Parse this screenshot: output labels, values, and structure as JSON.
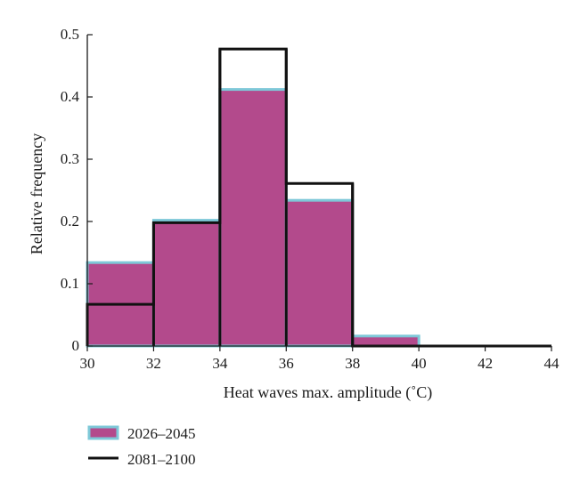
{
  "chart_data": {
    "type": "bar",
    "title": "",
    "xlabel": "Heat waves max. amplitude (˚C)",
    "ylabel": "Relative frequency",
    "xlim": [
      30,
      44
    ],
    "ylim": [
      0,
      0.5
    ],
    "x_ticks": [
      "30",
      "32",
      "34",
      "36",
      "38",
      "40",
      "42",
      "44"
    ],
    "y_ticks": [
      "0",
      "0.1",
      "0.2",
      "0.3",
      "0.4",
      "0.5"
    ],
    "bin_edges": [
      30,
      32,
      34,
      36,
      38,
      40,
      42,
      44
    ],
    "grid": false,
    "legend_position": "bottom-left",
    "series": [
      {
        "name": "2026–2045",
        "style": "filled-bars",
        "fill_color": "#b34a8c",
        "edge_color": "#7ec8d8",
        "values": [
          0.134,
          0.202,
          0.412,
          0.234,
          0.016,
          0.0,
          0.0
        ]
      },
      {
        "name": "2081–2100",
        "style": "step-outline",
        "line_color": "#111111",
        "values": [
          0.067,
          0.198,
          0.477,
          0.261,
          0.0,
          0.0,
          0.0
        ]
      }
    ]
  }
}
